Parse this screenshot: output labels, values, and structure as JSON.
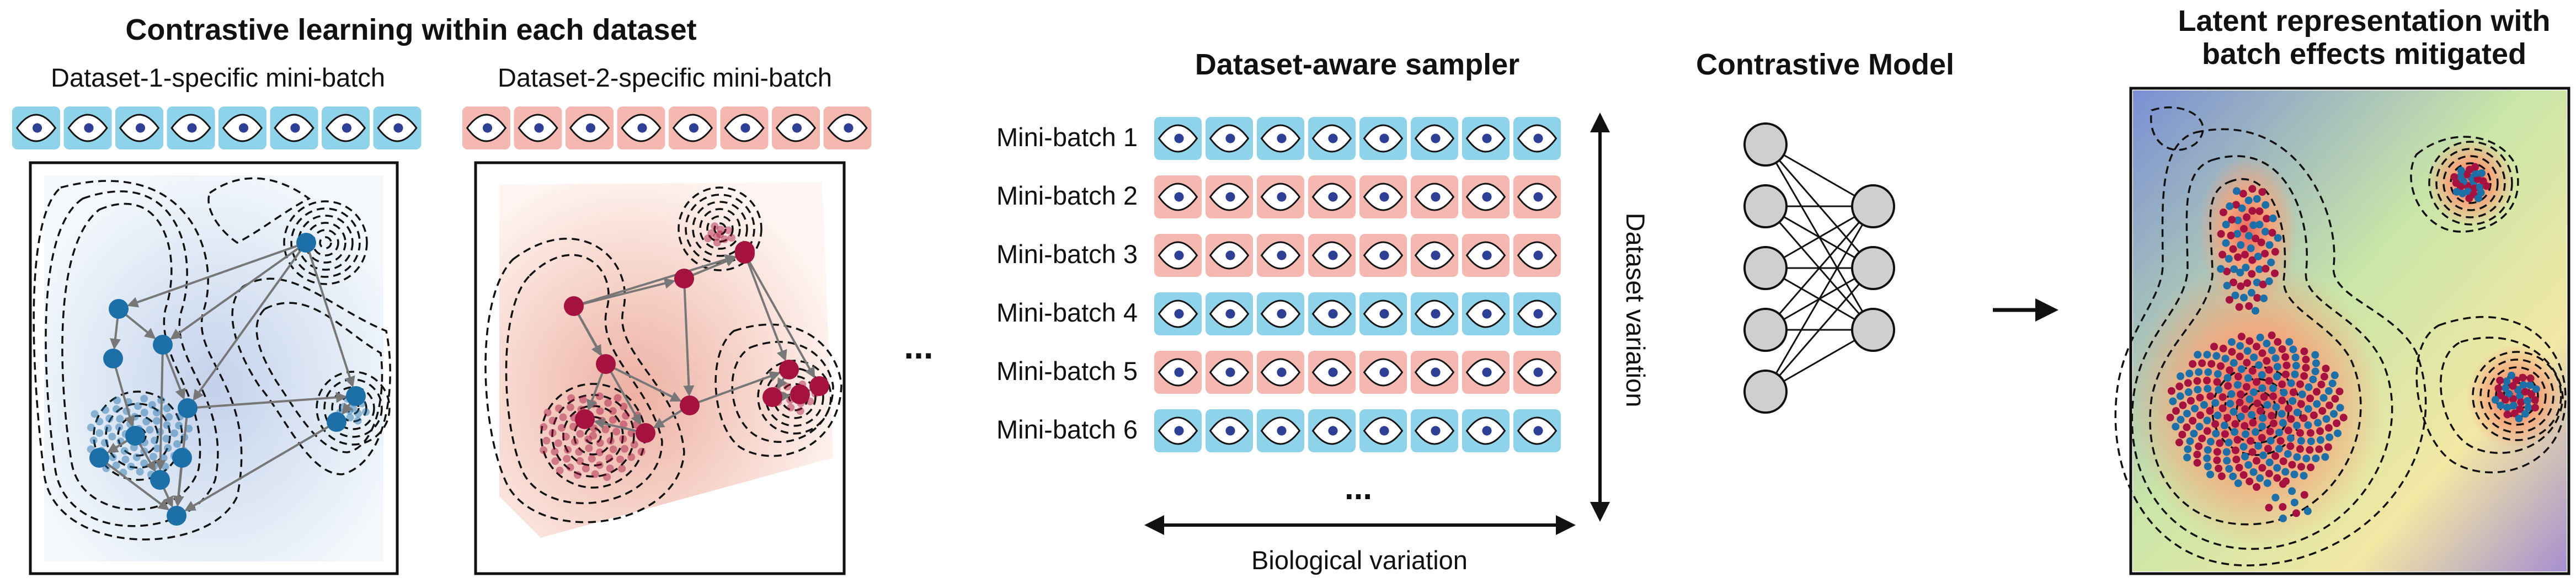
{
  "left_title": "Contrastive learning within each dataset",
  "dataset1_label": "Dataset-1-specific mini-batch",
  "dataset2_label": "Dataset-2-specific mini-batch",
  "sampler_title": "Dataset-aware sampler",
  "model_title": "Contrastive Model",
  "right_title_line1": "Latent representation with",
  "right_title_line2": "batch effects mitigated",
  "ellipsis": "...",
  "minibatches": [
    {
      "label": "Mini-batch 1",
      "dataset": 1
    },
    {
      "label": "Mini-batch 2",
      "dataset": 2
    },
    {
      "label": "Mini-batch 3",
      "dataset": 2
    },
    {
      "label": "Mini-batch 4",
      "dataset": 1
    },
    {
      "label": "Mini-batch 5",
      "dataset": 2
    },
    {
      "label": "Mini-batch 6",
      "dataset": 1
    }
  ],
  "tiles_per_batch": 8,
  "vertical_axis_label": "Dataset variation",
  "horizontal_axis_label": "Biological variation",
  "network_layers": [
    5,
    3
  ],
  "colors": {
    "dataset1_tile": "#8fd3ea",
    "dataset2_tile": "#f4b8b0",
    "dataset1_point": "#1d6fa8",
    "dataset2_point": "#a5123f",
    "eye_pupil": "#2e3f96",
    "node_fill": "#cfcfcf"
  },
  "icons": [
    "eye-icon",
    "double-arrow-icon",
    "right-arrow-icon",
    "neural-network-icon"
  ]
}
